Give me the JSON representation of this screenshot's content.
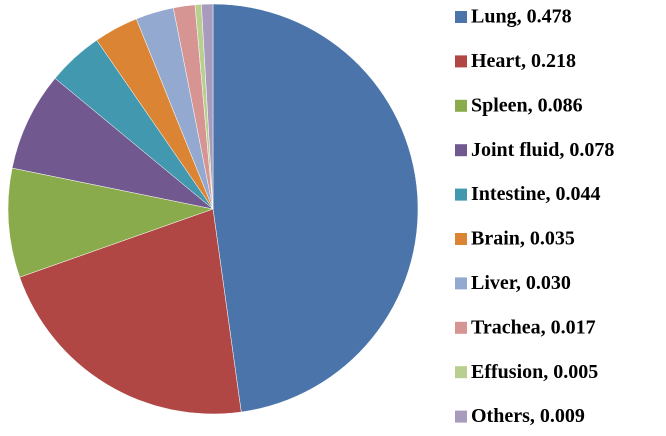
{
  "chart_data": {
    "type": "pie",
    "categories": [
      "Lung, 0.478",
      "Heart, 0.218",
      "Spleen, 0.086",
      "Joint fluid, 0.078",
      "Intestine, 0.044",
      "Brain, 0.035",
      "Liver, 0.030",
      "Trachea, 0.017",
      "Effusion, 0.005",
      "Others, 0.009"
    ],
    "values": [
      0.478,
      0.218,
      0.086,
      0.078,
      0.044,
      0.035,
      0.03,
      0.017,
      0.005,
      0.009
    ],
    "colors": [
      "#4a74aa",
      "#b04744",
      "#8aab4b",
      "#71588f",
      "#4298af",
      "#db8534",
      "#93a9d0",
      "#d69492",
      "#b9cf90",
      "#a99bbd"
    ],
    "legend": "right"
  }
}
